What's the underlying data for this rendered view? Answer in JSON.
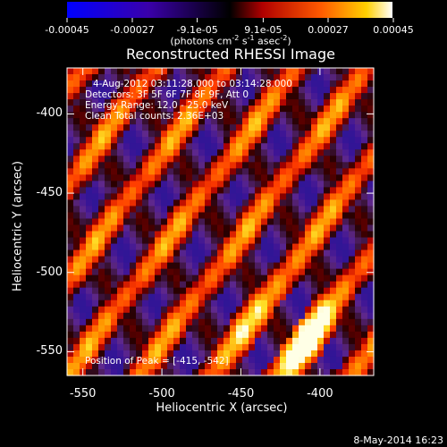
{
  "colorbar": {
    "tick_labels": [
      "-0.00045",
      "-0.00027",
      "-9.1e-05",
      "9.1e-05",
      "0.00027",
      "0.00045"
    ],
    "tick_values": [
      -0.00045,
      -0.00027,
      -9.1e-05,
      9.1e-05,
      0.00027,
      0.00045
    ],
    "range": [
      -0.00045,
      0.00045
    ],
    "unit_prefix": "(photons cm",
    "unit_sup1": "-2",
    "unit_mid1": " s",
    "unit_sup2": "-1",
    "unit_mid2": " asec",
    "unit_sup3": "-2",
    "unit_suffix": ")"
  },
  "chart_data": {
    "type": "heatmap",
    "title": "Reconstructed RHESSI Image",
    "xlabel": "Heliocentric X (arcsec)",
    "ylabel": "Heliocentric Y (arcsec)",
    "xlim": [
      -560,
      -366
    ],
    "ylim": [
      -565,
      -371
    ],
    "x_ticks": [
      -550,
      -500,
      -450,
      -400
    ],
    "y_ticks": [
      -550,
      -500,
      -450,
      -400
    ],
    "x_tick_labels": [
      "-550",
      "-500",
      "-450",
      "-400"
    ],
    "y_tick_labels": [
      "-550",
      "-500",
      "-450",
      "-400"
    ],
    "peak_position": [
      -415,
      -542
    ],
    "pattern": "diagonal stripes, lower-left to upper-right",
    "colormap": "blue-purple-red-orange-yellow-white",
    "annotations": {
      "time_range": "4-Aug-2012 03:11:28.000 to 03:14:28.000",
      "detectors": "Detectors: 3F 5F 6F 7F 8F 9F, Att 0",
      "energy_range": "Energy Range: 12.0 - 25.0 keV",
      "method_counts": "Clean     Total counts: 2.36E+03",
      "peak": "Position of Peak = [-415, -542]"
    }
  },
  "footer": {
    "date": "8-May-2014 16:23"
  }
}
